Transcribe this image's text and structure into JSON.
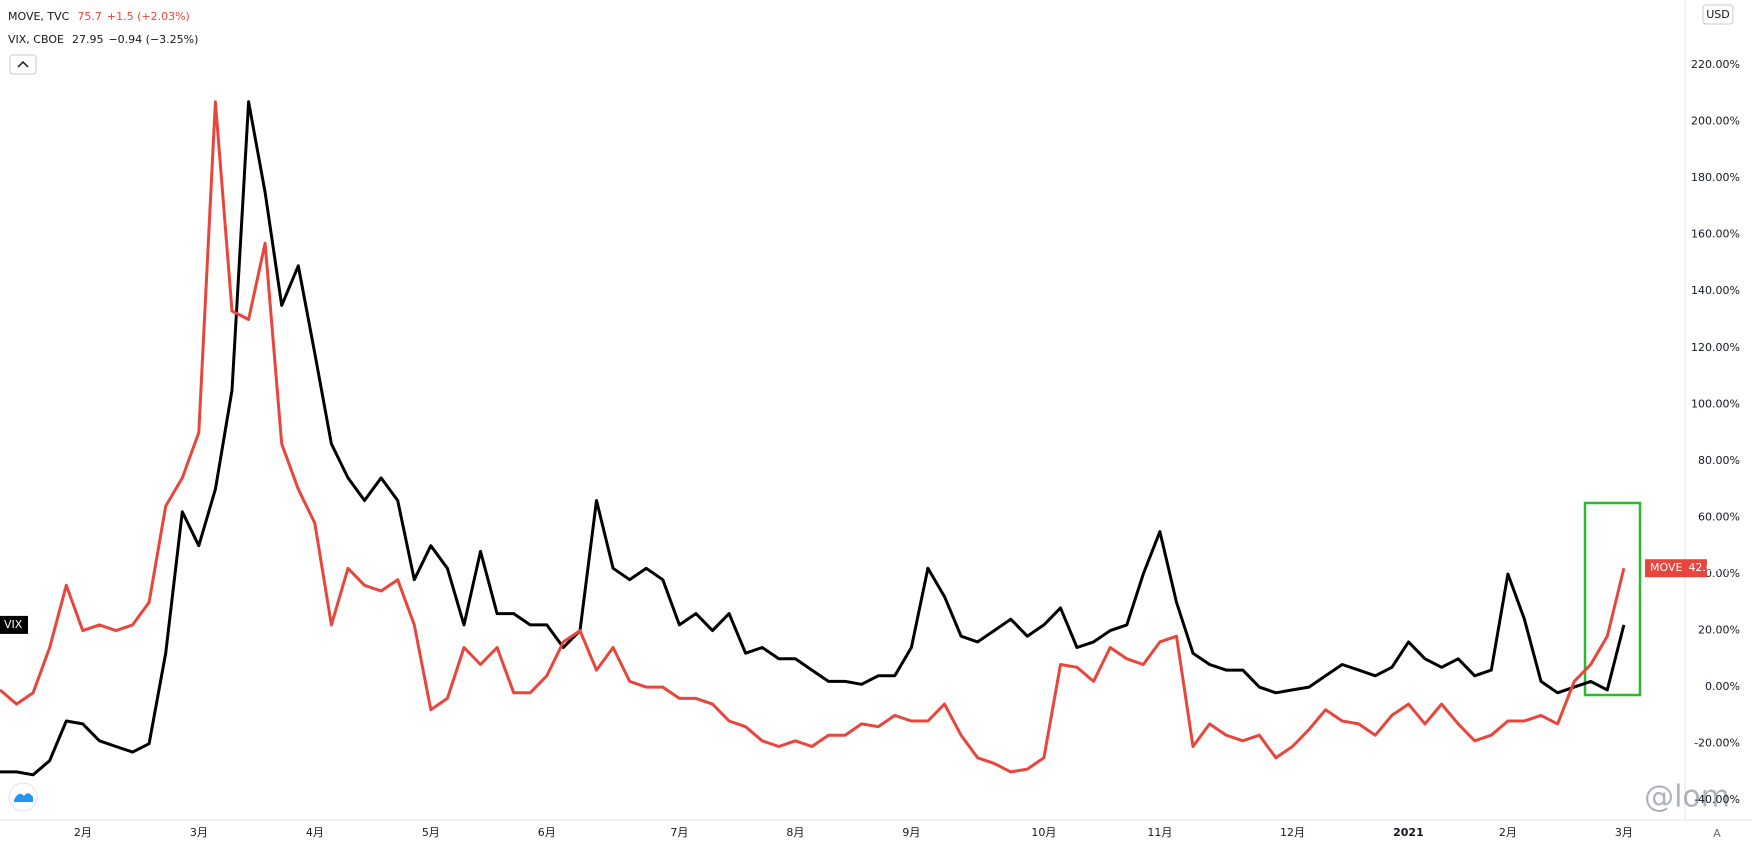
{
  "chart_data": {
    "type": "line",
    "categories": [
      null,
      null,
      null,
      null,
      null,
      "2月",
      null,
      null,
      null,
      null,
      null,
      null,
      "3月",
      null,
      null,
      null,
      null,
      null,
      null,
      "4月",
      null,
      null,
      null,
      null,
      null,
      null,
      "5月",
      null,
      null,
      null,
      null,
      null,
      null,
      "6月",
      null,
      null,
      null,
      null,
      null,
      null,
      null,
      "7月",
      null,
      null,
      null,
      null,
      null,
      null,
      "8月",
      null,
      null,
      null,
      null,
      null,
      null,
      "9月",
      null,
      null,
      null,
      null,
      null,
      null,
      null,
      "10月",
      null,
      null,
      null,
      null,
      null,
      null,
      "11月",
      null,
      null,
      null,
      null,
      null,
      null,
      null,
      "12月",
      null,
      null,
      null,
      null,
      null,
      null,
      "2021",
      null,
      null,
      null,
      null,
      null,
      "2月",
      null,
      null,
      null,
      null,
      null,
      null,
      "3月"
    ],
    "series": [
      {
        "name": "MOVE",
        "symbol": "MOVE, TVC",
        "last": "75.7",
        "change": "+1.5 (+2.03%)",
        "last_value_label": "42.05%",
        "color": "#e8463c",
        "values": [
          -1,
          -6,
          -2,
          14,
          36,
          20,
          22,
          20,
          22,
          30,
          64,
          74,
          90,
          207,
          133,
          130,
          157,
          86,
          70,
          58,
          22,
          42,
          36,
          34,
          38,
          22,
          -8,
          -4,
          14,
          8,
          14,
          -2,
          -2,
          4,
          16,
          20,
          6,
          14,
          2,
          0,
          0,
          -4,
          -4,
          -6,
          -12,
          -14,
          -19,
          -21,
          -19,
          -21,
          -17,
          -17,
          -13,
          -14,
          -10,
          -12,
          -12,
          -6,
          -17,
          -25,
          -27,
          -30,
          -29,
          -25,
          8,
          7,
          2,
          14,
          10,
          8,
          16,
          18,
          -21,
          -13,
          -17,
          -19,
          -17,
          -25,
          -21,
          -15,
          -8,
          -12,
          -13,
          -17,
          -10,
          -6,
          -13,
          -6,
          -13,
          -19,
          -17,
          -12,
          -12,
          -10,
          -13,
          2,
          8,
          18,
          42.05
        ]
      },
      {
        "name": "VIX",
        "symbol": "VIX, CBOE",
        "last": "27.95",
        "change": "−0.94 (−3.25%)",
        "color": "#000000",
        "values": [
          -30,
          -30,
          -31,
          -26,
          -12,
          -13,
          -19,
          -21,
          -23,
          -20,
          12,
          62,
          50,
          70,
          105,
          207,
          175,
          135,
          149,
          118,
          86,
          74,
          66,
          74,
          66,
          38,
          50,
          42,
          22,
          48,
          26,
          26,
          22,
          22,
          14,
          20,
          66,
          42,
          38,
          42,
          38,
          22,
          26,
          20,
          26,
          12,
          14,
          10,
          10,
          6,
          2,
          2,
          1,
          4,
          4,
          14,
          42,
          32,
          18,
          16,
          20,
          24,
          18,
          22,
          28,
          14,
          16,
          20,
          22,
          40,
          55,
          30,
          12,
          8,
          6,
          6,
          0,
          -2,
          -1,
          0,
          4,
          8,
          6,
          4,
          7,
          16,
          10,
          7,
          10,
          4,
          6,
          40,
          24,
          2,
          -2,
          0,
          2,
          -1,
          22
        ]
      }
    ],
    "ylim": [
      -47,
      243
    ],
    "yticks": [
      {
        "value": 220,
        "label": "220.00%"
      },
      {
        "value": 200,
        "label": "200.00%"
      },
      {
        "value": 180,
        "label": "180.00%"
      },
      {
        "value": 160,
        "label": "160.00%"
      },
      {
        "value": 140,
        "label": "140.00%"
      },
      {
        "value": 120,
        "label": "120.00%"
      },
      {
        "value": 100,
        "label": "100.00%"
      },
      {
        "value": 80,
        "label": "80.00%"
      },
      {
        "value": 60,
        "label": "60.00%"
      },
      {
        "value": 40,
        "label": "40.00%"
      },
      {
        "value": 20,
        "label": "20.00%"
      },
      {
        "value": 0,
        "label": "0.00%"
      },
      {
        "value": -20,
        "label": "-20.00%"
      },
      {
        "value": -40,
        "label": "-40.00%"
      }
    ],
    "grid": false,
    "currency": "USD",
    "watermark": "@lom",
    "scale_button": "A"
  }
}
